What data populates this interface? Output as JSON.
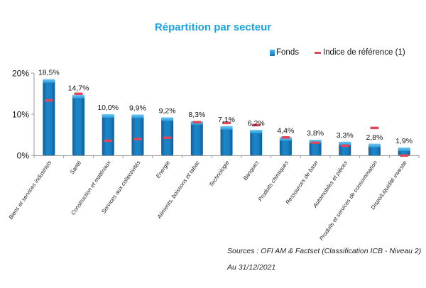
{
  "chart_data": {
    "type": "bar",
    "title": "Répartition par secteur",
    "xlabel": "",
    "ylabel": "",
    "ylim": [
      0,
      20
    ],
    "yticks": [
      0,
      10,
      20
    ],
    "ytick_labels": [
      "0%",
      "10%",
      "20%"
    ],
    "grid": false,
    "legend_position": "top-right",
    "categories": [
      "Biens et services industriels",
      "Santé",
      "Construction et matériaux",
      "Services aux collectivités",
      "Energie",
      "Aliments, boissons et tabac",
      "Technologie",
      "Banques",
      "Produits chimiques",
      "Ressources de base",
      "Automobiles et pièces",
      "Produits et services de consommation",
      "Dispo/Liquidité investie"
    ],
    "series": [
      {
        "name": "Fonds",
        "kind": "bar",
        "color": "#1a7fc1",
        "values": [
          18.5,
          14.7,
          10.0,
          9.9,
          9.2,
          8.3,
          7.1,
          6.2,
          4.4,
          3.8,
          3.3,
          2.8,
          1.9
        ],
        "labels": [
          "18,5%",
          "14,7%",
          "10,0%",
          "9,9%",
          "9,2%",
          "8,3%",
          "7,1%",
          "6,2%",
          "4,4%",
          "3,8%",
          "3,3%",
          "2,8%",
          "1,9%"
        ]
      },
      {
        "name": "Indice de référence (1)",
        "kind": "marker",
        "color": "#e0475b",
        "values": [
          13.4,
          15.0,
          3.6,
          4.0,
          4.3,
          8.1,
          7.9,
          7.4,
          4.4,
          3.1,
          2.4,
          6.7,
          0.0
        ]
      }
    ]
  },
  "legend": {
    "fonds": "Fonds",
    "indice": "Indice de référence (1)"
  },
  "footer": {
    "source": "Sources : OFI AM & Factset (Classification ICB - Niveau 2)",
    "as_of": "Au 31/12/2021"
  }
}
